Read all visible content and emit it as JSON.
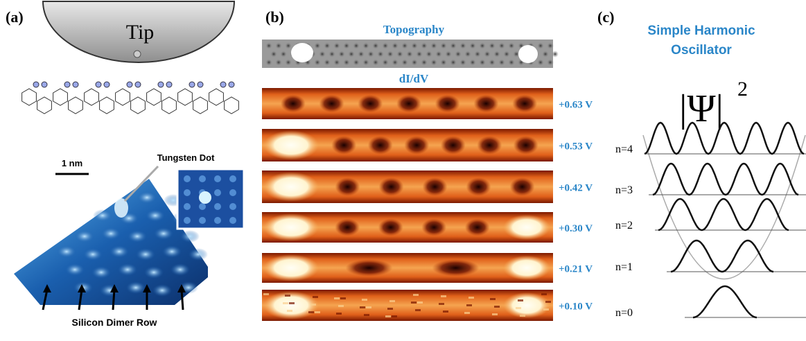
{
  "panel_a": {
    "label": "(a)",
    "tip": "Tip",
    "scale_bar": "1 nm",
    "dot_label": "Tungsten Dot",
    "row_label": "Silicon Dimer Row"
  },
  "panel_b": {
    "label": "(b)",
    "topography": "Topography",
    "didv": "dI/dV",
    "biases": [
      "+0.63 V",
      "+0.53 V",
      "+0.42 V",
      "+0.30 V",
      "+0.21 V",
      "+0.10 V"
    ]
  },
  "panel_c": {
    "label": "(c)",
    "title_lines": [
      "Simple Harmonic",
      "Oscillator"
    ],
    "psi": "|Ψ|",
    "psi_power": "2",
    "levels": [
      "n=4",
      "n=3",
      "n=2",
      "n=1",
      "n=0"
    ]
  }
}
